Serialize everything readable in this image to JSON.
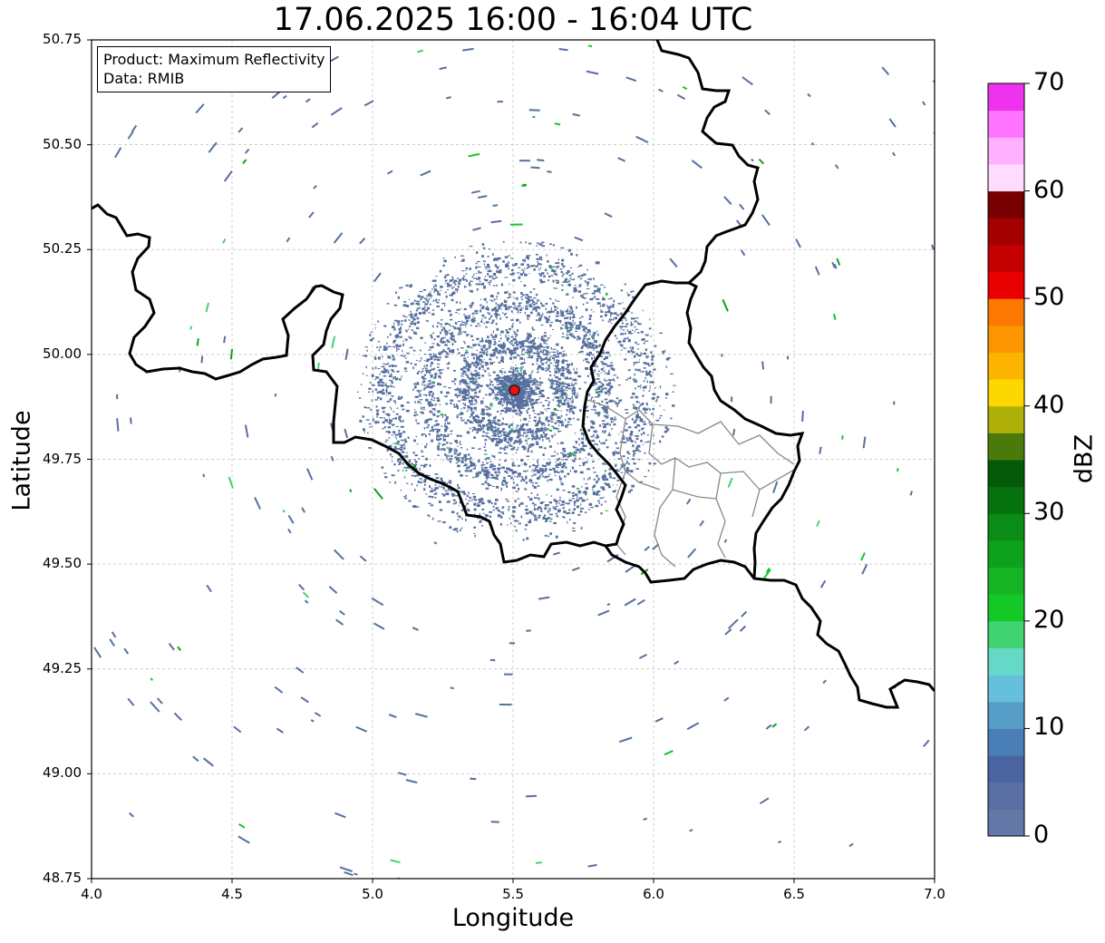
{
  "title": "17.06.2025 16:00 - 16:04 UTC",
  "info": {
    "product": "Product: Maximum Reflectivity",
    "data": "Data: RMIB"
  },
  "axes": {
    "xlabel": "Longitude",
    "ylabel": "Latitude",
    "xlim": [
      4.0,
      7.0
    ],
    "ylim": [
      48.75,
      50.75
    ],
    "xticks": [
      "4.0",
      "4.5",
      "5.0",
      "5.5",
      "6.0",
      "6.5",
      "7.0"
    ],
    "yticks": [
      "50.75",
      "50.50",
      "50.25",
      "50.00",
      "49.75",
      "49.50",
      "49.25",
      "49.00",
      "48.75"
    ]
  },
  "colorbar": {
    "label": "dBZ",
    "ticks": [
      "0",
      "10",
      "20",
      "30",
      "40",
      "50",
      "60",
      "70"
    ],
    "range": [
      0,
      70
    ],
    "colors": [
      "#6478a8",
      "#5a6fa4",
      "#4a64a2",
      "#4a7eb6",
      "#569ec8",
      "#64c0dc",
      "#66d8c8",
      "#42d472",
      "#14c828",
      "#14b424",
      "#0ea21c",
      "#0a8c16",
      "#06720e",
      "#045a08",
      "#4a7a0a",
      "#b0b00a",
      "#fcd800",
      "#fcb400",
      "#fc9600",
      "#fc7800",
      "#e80000",
      "#c40000",
      "#a40000",
      "#780000",
      "#ffdcff",
      "#ffb0ff",
      "#ff74ff",
      "#ee32ee"
    ]
  },
  "radar_site": {
    "lon": 5.505,
    "lat": 49.915,
    "color": "#ee1111"
  },
  "colors": {
    "echo": "#56709e",
    "border": "#000000",
    "province": "#888888",
    "grid": "#bbbbbb"
  }
}
